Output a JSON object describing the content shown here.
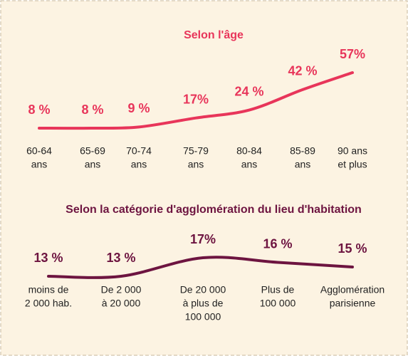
{
  "chart_data": [
    {
      "type": "line",
      "title": "Selon l'âge",
      "color": "#e8355a",
      "categories": [
        [
          "60-64",
          "ans"
        ],
        [
          "65-69",
          "ans"
        ],
        [
          "70-74",
          "ans"
        ],
        [
          "75-79",
          "ans"
        ],
        [
          "80-84",
          "ans"
        ],
        [
          "85-89",
          "ans"
        ],
        [
          "90 ans",
          "et plus"
        ]
      ],
      "values": [
        8,
        8,
        9,
        17,
        24,
        42,
        57
      ],
      "value_labels": [
        "8 %",
        "8 %",
        "9 %",
        "17%",
        "24 %",
        "42 %",
        "57%"
      ]
    },
    {
      "type": "line",
      "title": "Selon la catégorie d'agglomération du lieu d'habitation",
      "color": "#6d1440",
      "categories": [
        [
          "moins de",
          "2 000 hab."
        ],
        [
          "De 2 000",
          "à 20 000"
        ],
        [
          "De 20 000",
          "à plus de",
          "100 000"
        ],
        [
          "Plus de",
          "100 000"
        ],
        [
          "Agglomération",
          "parisienne"
        ]
      ],
      "values": [
        13,
        13,
        17,
        16,
        15
      ],
      "value_labels": [
        "13 %",
        "13 %",
        "17%",
        "16 %",
        "15 %"
      ]
    }
  ]
}
